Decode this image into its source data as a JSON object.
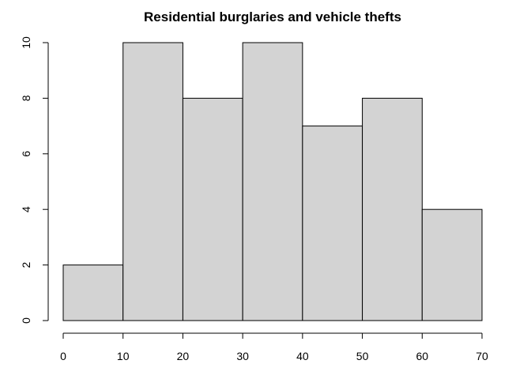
{
  "chart_data": {
    "type": "bar",
    "title": "Residential burglaries and vehicle thefts",
    "xlabel": "",
    "ylabel": "",
    "bins": [
      {
        "from": 0,
        "to": 10,
        "count": 2
      },
      {
        "from": 10,
        "to": 20,
        "count": 10
      },
      {
        "from": 20,
        "to": 30,
        "count": 8
      },
      {
        "from": 30,
        "to": 40,
        "count": 10
      },
      {
        "from": 40,
        "to": 50,
        "count": 7
      },
      {
        "from": 50,
        "to": 60,
        "count": 8
      },
      {
        "from": 60,
        "to": 70,
        "count": 4
      }
    ],
    "xlim": [
      0,
      70
    ],
    "ylim": [
      0,
      10
    ],
    "x_ticks": [
      0,
      10,
      20,
      30,
      40,
      50,
      60,
      70
    ],
    "y_ticks": [
      0,
      2,
      4,
      6,
      8,
      10
    ],
    "grid": false,
    "colors": {
      "bar_fill": "#d3d3d3",
      "bar_stroke": "#000000"
    }
  }
}
